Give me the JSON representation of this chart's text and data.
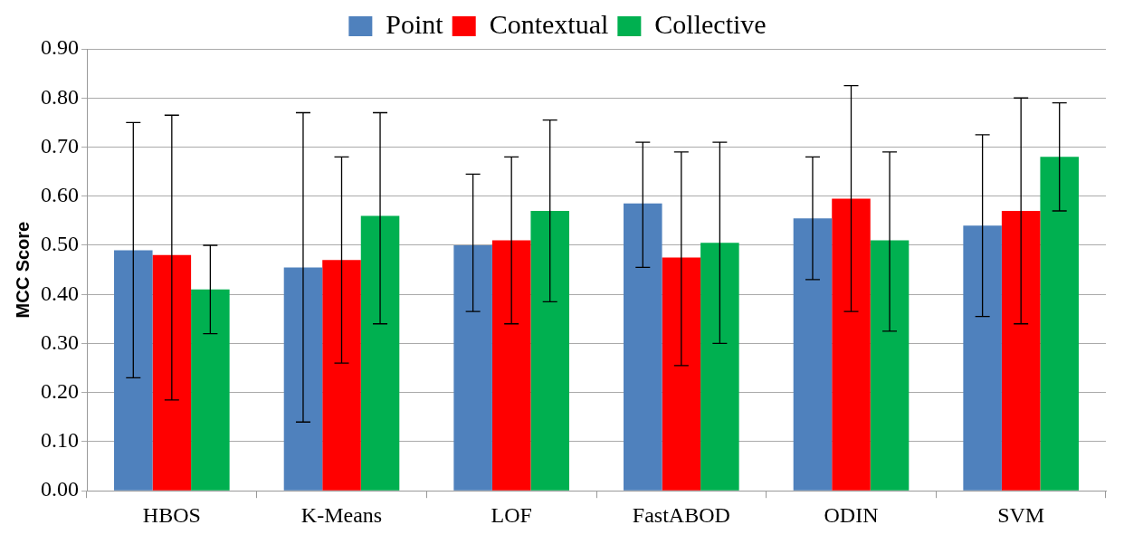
{
  "chart_data": {
    "type": "bar",
    "ylabel": "MCC Score",
    "categories": [
      "HBOS",
      "K-Means",
      "LOF",
      "FastABOD",
      "ODIN",
      "SVM"
    ],
    "series": [
      {
        "name": "Point",
        "color": "#4f81bd",
        "values": [
          0.49,
          0.455,
          0.5,
          0.585,
          0.555,
          0.54
        ],
        "errors": [
          [
            0.23,
            0.75
          ],
          [
            0.14,
            0.77
          ],
          [
            0.365,
            0.645
          ],
          [
            0.455,
            0.71
          ],
          [
            0.43,
            0.68
          ],
          [
            0.355,
            0.725
          ]
        ]
      },
      {
        "name": "Contextual",
        "color": "#ff0000",
        "values": [
          0.48,
          0.47,
          0.51,
          0.475,
          0.595,
          0.57
        ],
        "errors": [
          [
            0.185,
            0.765
          ],
          [
            0.26,
            0.68
          ],
          [
            0.34,
            0.68
          ],
          [
            0.255,
            0.69
          ],
          [
            0.365,
            0.825
          ],
          [
            0.34,
            0.8
          ]
        ]
      },
      {
        "name": "Collective",
        "color": "#00b050",
        "values": [
          0.41,
          0.56,
          0.57,
          0.505,
          0.51,
          0.68
        ],
        "errors": [
          [
            0.32,
            0.5
          ],
          [
            0.34,
            0.77
          ],
          [
            0.385,
            0.755
          ],
          [
            0.3,
            0.71
          ],
          [
            0.325,
            0.69
          ],
          [
            0.57,
            0.79
          ]
        ]
      }
    ],
    "ylim": [
      0,
      0.9
    ],
    "yticks": [
      {
        "value": 0,
        "label": "0.00"
      },
      {
        "value": 0.1,
        "label": "0.10"
      },
      {
        "value": 0.2,
        "label": "0.20"
      },
      {
        "value": 0.3,
        "label": "0.30"
      },
      {
        "value": 0.4,
        "label": "0.40"
      },
      {
        "value": 0.5,
        "label": "0.50"
      },
      {
        "value": 0.6,
        "label": "0.60"
      },
      {
        "value": 0.7,
        "label": "0.70"
      },
      {
        "value": 0.8,
        "label": "0.80"
      },
      {
        "value": 0.9,
        "label": "0.90"
      }
    ],
    "grid": "y",
    "legend": "top"
  }
}
